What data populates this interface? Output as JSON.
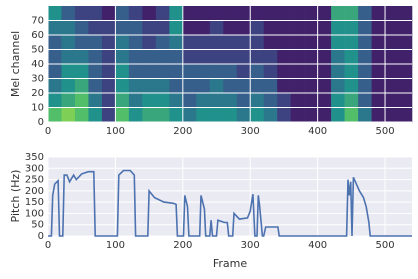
{
  "chart_data": [
    {
      "type": "heatmap",
      "ylabel": "Mel channel",
      "xlim": [
        0,
        540
      ],
      "xticks": [
        0,
        100,
        200,
        300,
        400,
        500
      ],
      "ylim": [
        0,
        80
      ],
      "yticks": [
        0,
        10,
        20,
        30,
        40,
        50,
        60,
        70
      ],
      "grid": true,
      "values": [
        [
          0.7,
          0.5,
          0.4,
          0.3,
          0.3,
          0.3,
          0.4,
          0.5
        ],
        [
          0.8,
          0.6,
          0.5,
          0.5,
          0.4,
          0.4,
          0.4,
          0.3
        ],
        [
          0.7,
          0.7,
          0.6,
          0.5,
          0.4,
          0.3,
          0.3,
          0.2
        ],
        [
          0.5,
          0.4,
          0.3,
          0.3,
          0.3,
          0.3,
          0.2,
          0.2
        ],
        [
          0.2,
          0.2,
          0.2,
          0.2,
          0.2,
          0.2,
          0.2,
          0.1
        ],
        [
          0.7,
          0.6,
          0.5,
          0.5,
          0.4,
          0.4,
          0.3,
          0.3
        ],
        [
          0.5,
          0.4,
          0.4,
          0.3,
          0.3,
          0.3,
          0.3,
          0.2
        ],
        [
          0.6,
          0.5,
          0.4,
          0.3,
          0.3,
          0.2,
          0.2,
          0.1
        ],
        [
          0.6,
          0.5,
          0.4,
          0.3,
          0.3,
          0.3,
          0.2,
          0.2
        ],
        [
          0.5,
          0.4,
          0.3,
          0.3,
          0.3,
          0.4,
          0.5,
          0.5
        ],
        [
          0.4,
          0.3,
          0.3,
          0.3,
          0.2,
          0.2,
          0.1,
          0.1
        ],
        [
          0.5,
          0.4,
          0.3,
          0.3,
          0.2,
          0.2,
          0.1,
          0.1
        ],
        [
          0.5,
          0.4,
          0.4,
          0.3,
          0.2,
          0.2,
          0.2,
          0.1
        ],
        [
          0.5,
          0.4,
          0.3,
          0.3,
          0.2,
          0.2,
          0.1,
          0.1
        ],
        [
          0.4,
          0.3,
          0.3,
          0.2,
          0.2,
          0.2,
          0.1,
          0.1
        ],
        [
          0.5,
          0.4,
          0.3,
          0.3,
          0.2,
          0.2,
          0.2,
          0.1
        ],
        [
          0.4,
          0.3,
          0.3,
          0.2,
          0.2,
          0.1,
          0.1,
          0.1
        ],
        [
          0.2,
          0.2,
          0.1,
          0.1,
          0.1,
          0.1,
          0.1,
          0.1
        ],
        [
          0.1,
          0.1,
          0.1,
          0.1,
          0.1,
          0.1,
          0.1,
          0.1
        ],
        [
          0.1,
          0.1,
          0.1,
          0.1,
          0.1,
          0.1,
          0.1,
          0.1
        ],
        [
          0.1,
          0.1,
          0.1,
          0.1,
          0.1,
          0.1,
          0.1,
          0.1
        ],
        [
          0.5,
          0.5,
          0.4,
          0.4,
          0.4,
          0.5,
          0.5,
          0.6
        ],
        [
          0.7,
          0.6,
          0.5,
          0.5,
          0.5,
          0.5,
          0.5,
          0.6
        ],
        [
          0.4,
          0.3,
          0.3,
          0.3,
          0.3,
          0.3,
          0.3,
          0.3
        ],
        [
          0.1,
          0.1,
          0.1,
          0.1,
          0.1,
          0.1,
          0.1,
          0.1
        ],
        [
          0.1,
          0.1,
          0.1,
          0.1,
          0.1,
          0.1,
          0.1,
          0.1
        ],
        [
          0.1,
          0.1,
          0.1,
          0.1,
          0.1,
          0.1,
          0.1,
          0.1
        ]
      ]
    },
    {
      "type": "line",
      "xlabel": "Frame",
      "ylabel": "Pitch (Hz)",
      "color": "#4c72b0",
      "xlim": [
        0,
        540
      ],
      "xticks": [
        0,
        100,
        200,
        300,
        400,
        500
      ],
      "ylim": [
        0,
        350
      ],
      "yticks": [
        0,
        50,
        100,
        150,
        200,
        250,
        300,
        350
      ],
      "grid": true,
      "x": [
        0,
        5,
        7,
        10,
        15,
        17,
        22,
        24,
        28,
        32,
        38,
        42,
        50,
        60,
        68,
        70,
        103,
        105,
        112,
        122,
        128,
        130,
        148,
        150,
        158,
        172,
        186,
        190,
        192,
        201,
        203,
        207,
        209,
        225,
        227,
        232,
        234,
        240,
        242,
        244,
        250,
        252,
        262,
        266,
        268,
        274,
        276,
        284,
        296,
        300,
        304,
        307,
        310,
        312,
        314,
        318,
        320,
        323,
        325,
        341,
        343,
        443,
        445,
        447,
        449,
        451,
        453,
        456,
        462,
        468,
        472,
        476,
        478,
        540
      ],
      "values": [
        0,
        0,
        180,
        230,
        245,
        0,
        0,
        270,
        270,
        240,
        270,
        250,
        275,
        285,
        285,
        0,
        0,
        270,
        290,
        290,
        270,
        0,
        0,
        200,
        170,
        150,
        145,
        140,
        0,
        0,
        180,
        130,
        0,
        0,
        180,
        120,
        0,
        0,
        70,
        0,
        0,
        70,
        60,
        60,
        0,
        0,
        100,
        75,
        80,
        110,
        185,
        0,
        0,
        180,
        130,
        0,
        0,
        40,
        40,
        40,
        0,
        0,
        250,
        180,
        240,
        0,
        260,
        240,
        200,
        170,
        130,
        60,
        0,
        0
      ]
    }
  ]
}
